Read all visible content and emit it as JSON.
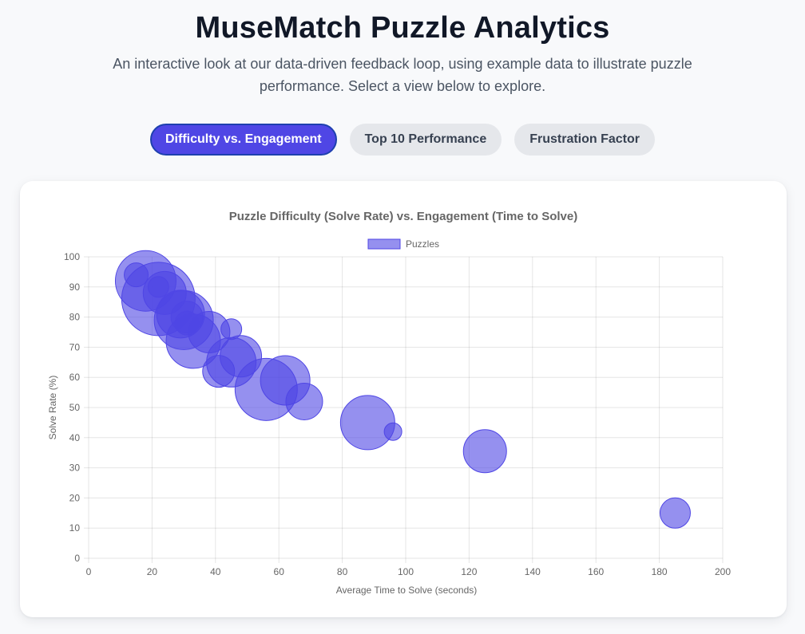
{
  "header": {
    "title": "MuseMatch Puzzle Analytics",
    "subtitle": "An interactive look at our data-driven feedback loop, using example data to illustrate puzzle performance. Select a view below to explore."
  },
  "tabs": [
    {
      "label": "Difficulty vs. Engagement",
      "active": true
    },
    {
      "label": "Top 10 Performance",
      "active": false
    },
    {
      "label": "Frustration Factor",
      "active": false
    }
  ],
  "colors": {
    "accent": "#4f46e5",
    "bubble_fill": "rgba(79, 70, 229, 0.6)",
    "bubble_stroke": "#4f46e5"
  },
  "chart_data": {
    "type": "scatter",
    "title": "Puzzle Difficulty (Solve Rate) vs. Engagement (Time to Solve)",
    "xlabel": "Average Time to Solve (seconds)",
    "ylabel": "Solve Rate (%)",
    "xlim": [
      0,
      200
    ],
    "ylim": [
      0,
      100
    ],
    "x_ticks": [
      0,
      20,
      40,
      60,
      80,
      100,
      120,
      140,
      160,
      180,
      200
    ],
    "y_ticks": [
      0,
      10,
      20,
      30,
      40,
      50,
      60,
      70,
      80,
      90,
      100
    ],
    "grid": true,
    "legend_position": "top",
    "series": [
      {
        "name": "Puzzles",
        "points": [
          {
            "x": 18,
            "y": 92,
            "r": 38
          },
          {
            "x": 15,
            "y": 94,
            "r": 15
          },
          {
            "x": 22,
            "y": 86,
            "r": 46
          },
          {
            "x": 24,
            "y": 88,
            "r": 27
          },
          {
            "x": 22,
            "y": 90,
            "r": 13
          },
          {
            "x": 30,
            "y": 79,
            "r": 37
          },
          {
            "x": 29,
            "y": 81,
            "r": 30
          },
          {
            "x": 31,
            "y": 80,
            "r": 20
          },
          {
            "x": 31,
            "y": 78,
            "r": 15
          },
          {
            "x": 33,
            "y": 72,
            "r": 34
          },
          {
            "x": 38,
            "y": 75,
            "r": 26
          },
          {
            "x": 45,
            "y": 76,
            "r": 13
          },
          {
            "x": 41,
            "y": 62,
            "r": 20
          },
          {
            "x": 45,
            "y": 65,
            "r": 31
          },
          {
            "x": 48,
            "y": 67,
            "r": 26
          },
          {
            "x": 56,
            "y": 56,
            "r": 39
          },
          {
            "x": 62,
            "y": 59,
            "r": 31
          },
          {
            "x": 68,
            "y": 52,
            "r": 23
          },
          {
            "x": 88,
            "y": 45,
            "r": 34
          },
          {
            "x": 96,
            "y": 42,
            "r": 11
          },
          {
            "x": 125,
            "y": 35.5,
            "r": 27
          },
          {
            "x": 185,
            "y": 15,
            "r": 19
          }
        ]
      }
    ]
  }
}
